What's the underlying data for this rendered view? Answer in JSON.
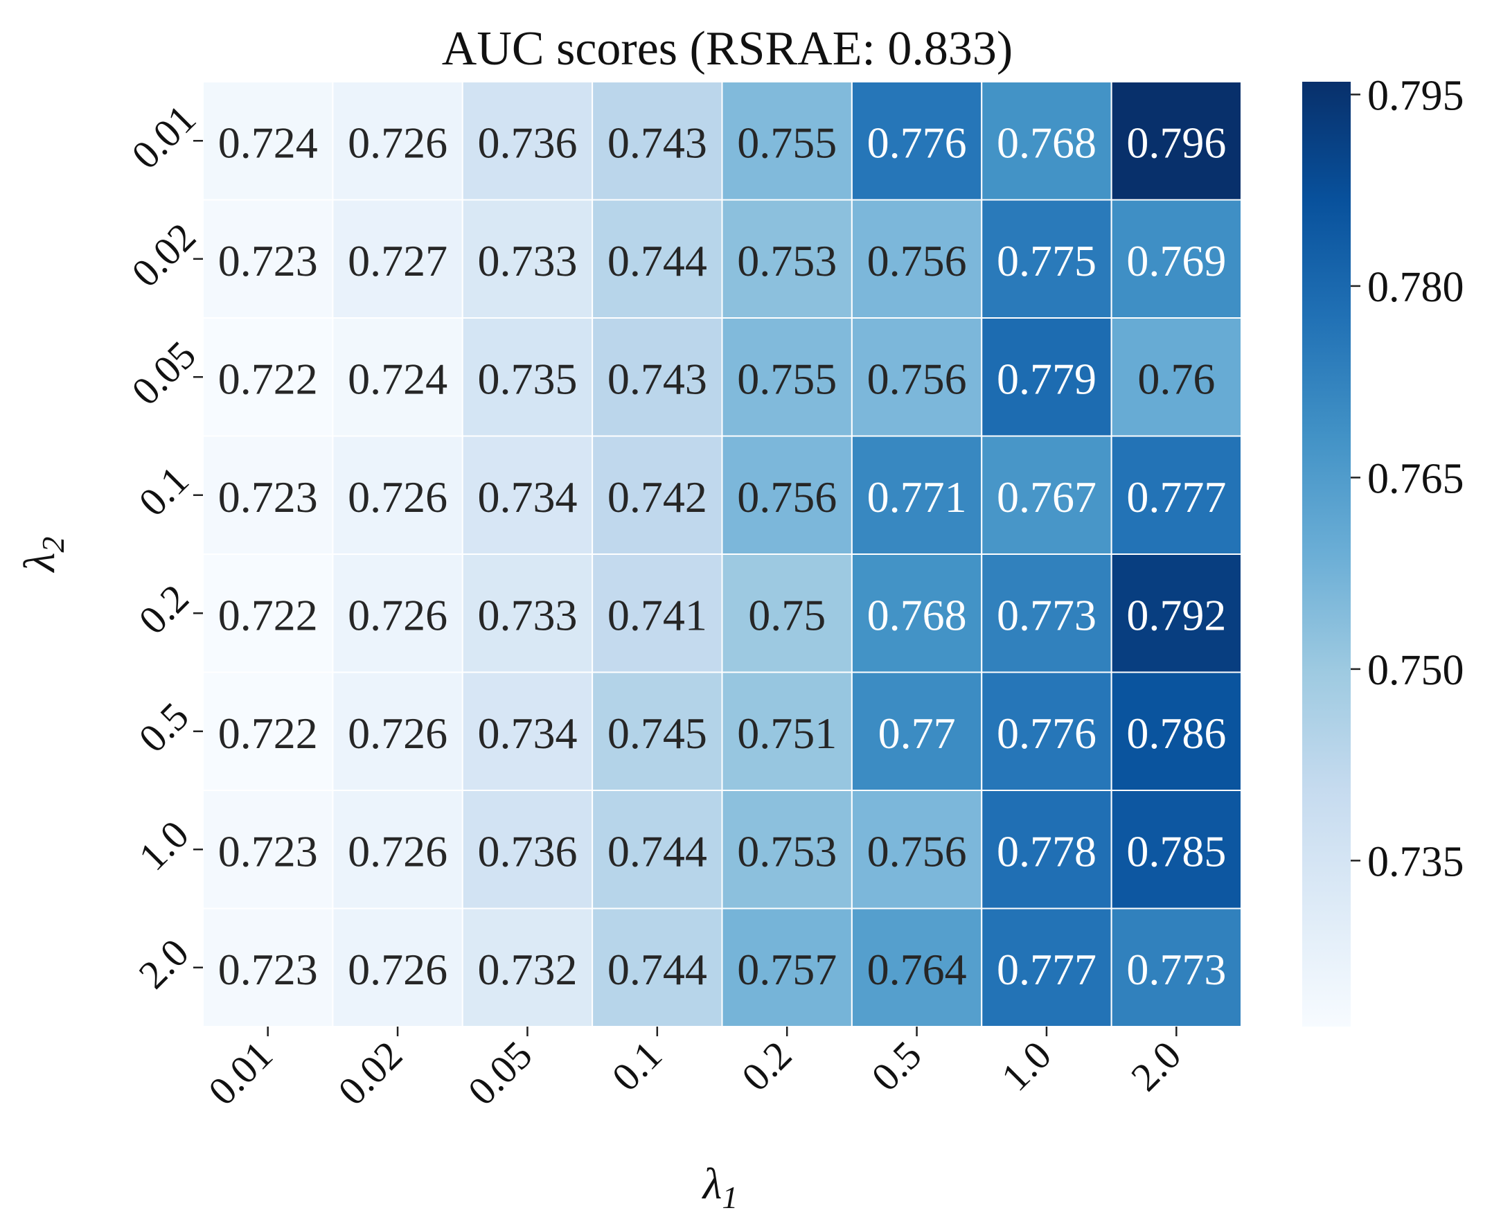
{
  "chart_data": {
    "type": "heatmap",
    "title": "AUC scores (RSRAE: 0.833)",
    "xlabel": "λ1",
    "ylabel": "λ2",
    "x_categories": [
      "0.01",
      "0.02",
      "0.05",
      "0.1",
      "0.2",
      "0.5",
      "1.0",
      "2.0"
    ],
    "y_categories": [
      "0.01",
      "0.02",
      "0.05",
      "0.1",
      "0.2",
      "0.5",
      "1.0",
      "2.0"
    ],
    "values": [
      [
        0.724,
        0.726,
        0.736,
        0.743,
        0.755,
        0.776,
        0.768,
        0.796
      ],
      [
        0.723,
        0.727,
        0.733,
        0.744,
        0.753,
        0.756,
        0.775,
        0.769
      ],
      [
        0.722,
        0.724,
        0.735,
        0.743,
        0.755,
        0.756,
        0.779,
        0.76
      ],
      [
        0.723,
        0.726,
        0.734,
        0.742,
        0.756,
        0.771,
        0.767,
        0.777
      ],
      [
        0.722,
        0.726,
        0.733,
        0.741,
        0.75,
        0.768,
        0.773,
        0.792
      ],
      [
        0.722,
        0.726,
        0.734,
        0.745,
        0.751,
        0.77,
        0.776,
        0.786
      ],
      [
        0.723,
        0.726,
        0.736,
        0.744,
        0.753,
        0.756,
        0.778,
        0.785
      ],
      [
        0.723,
        0.726,
        0.732,
        0.744,
        0.757,
        0.764,
        0.777,
        0.773
      ]
    ],
    "value_labels": [
      [
        "0.724",
        "0.726",
        "0.736",
        "0.743",
        "0.755",
        "0.776",
        "0.768",
        "0.796"
      ],
      [
        "0.723",
        "0.727",
        "0.733",
        "0.744",
        "0.753",
        "0.756",
        "0.775",
        "0.769"
      ],
      [
        "0.722",
        "0.724",
        "0.735",
        "0.743",
        "0.755",
        "0.756",
        "0.779",
        "0.76"
      ],
      [
        "0.723",
        "0.726",
        "0.734",
        "0.742",
        "0.756",
        "0.771",
        "0.767",
        "0.777"
      ],
      [
        "0.722",
        "0.726",
        "0.733",
        "0.741",
        "0.75",
        "0.768",
        "0.773",
        "0.792"
      ],
      [
        "0.722",
        "0.726",
        "0.734",
        "0.745",
        "0.751",
        "0.77",
        "0.776",
        "0.786"
      ],
      [
        "0.723",
        "0.726",
        "0.736",
        "0.744",
        "0.753",
        "0.756",
        "0.778",
        "0.785"
      ],
      [
        "0.723",
        "0.726",
        "0.732",
        "0.744",
        "0.757",
        "0.764",
        "0.777",
        "0.773"
      ]
    ],
    "colormap": "Blues",
    "color_range": [
      0.722,
      0.796
    ],
    "colorbar_ticks": [
      0.735,
      0.75,
      0.765,
      0.78,
      0.795
    ],
    "colorbar_tick_labels": [
      "0.735",
      "0.750",
      "0.765",
      "0.780",
      "0.795"
    ],
    "colorbar_position": "right",
    "grid": false
  }
}
